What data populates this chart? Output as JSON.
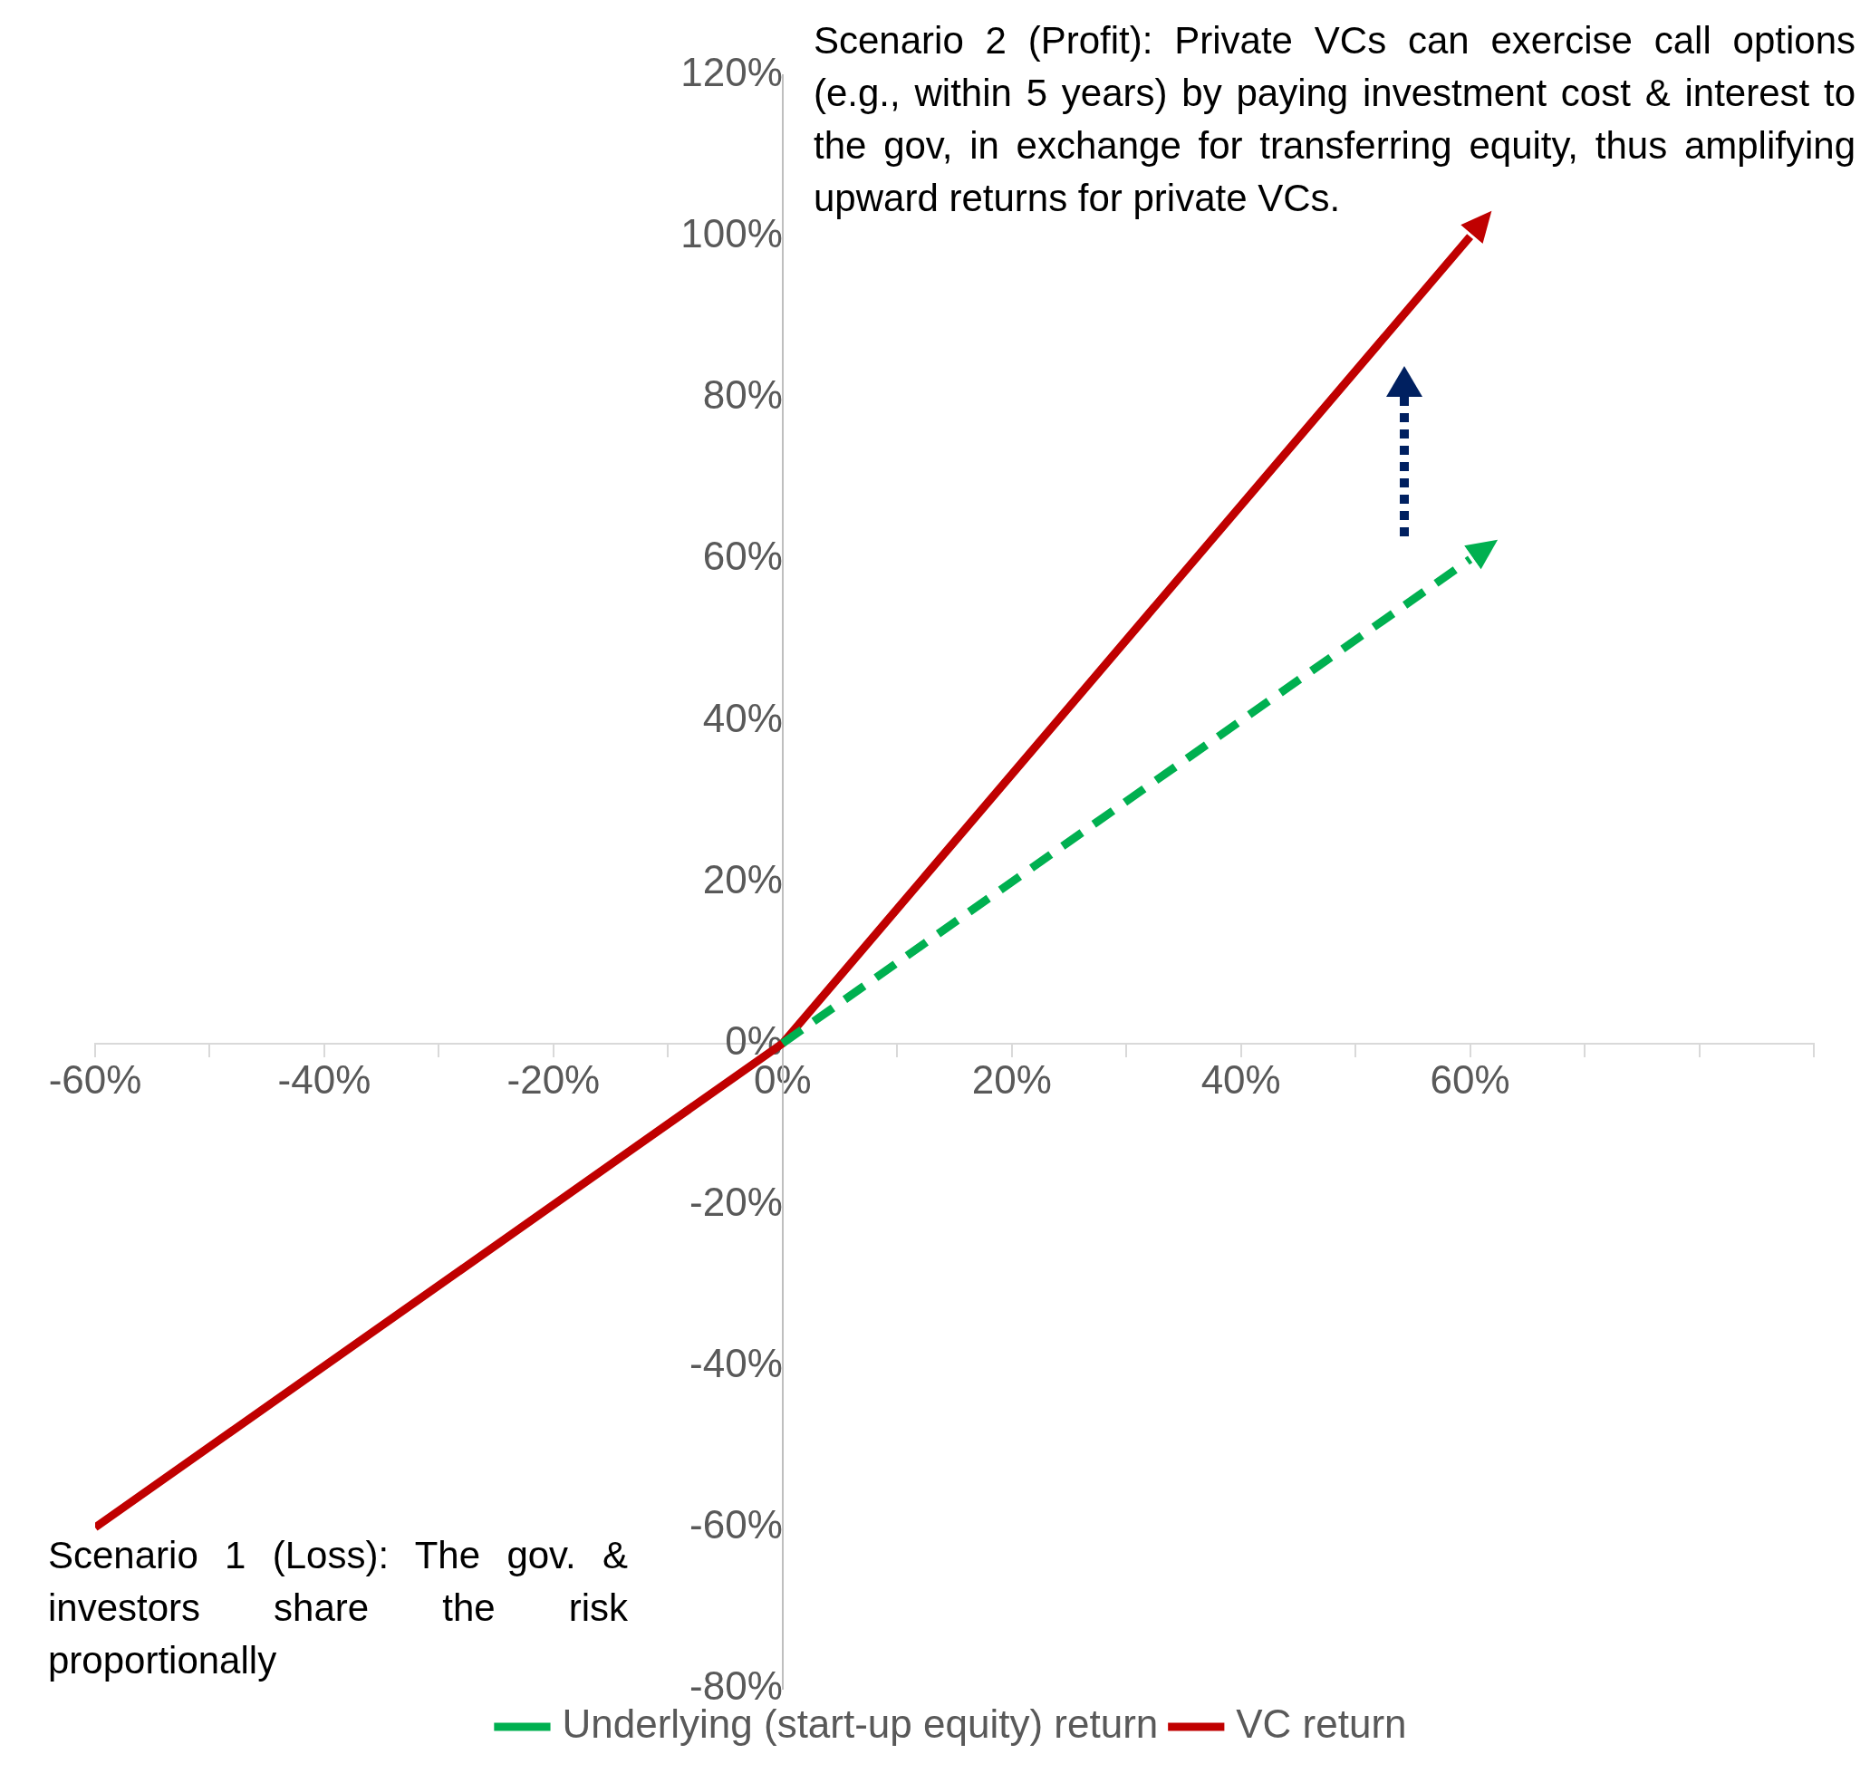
{
  "chart_data": {
    "type": "line",
    "xlim": [
      -60,
      90
    ],
    "xticks": [
      {
        "value": -60,
        "label": "-60%"
      },
      {
        "value": -50,
        "label": null
      },
      {
        "value": -40,
        "label": "-40%"
      },
      {
        "value": -30,
        "label": null
      },
      {
        "value": -20,
        "label": "-20%"
      },
      {
        "value": -10,
        "label": null
      },
      {
        "value": 0,
        "label": "0%"
      },
      {
        "value": 10,
        "label": null
      },
      {
        "value": 20,
        "label": "20%"
      },
      {
        "value": 30,
        "label": null
      },
      {
        "value": 40,
        "label": "40%"
      },
      {
        "value": 50,
        "label": null
      },
      {
        "value": 60,
        "label": "60%"
      },
      {
        "value": 70,
        "label": null
      },
      {
        "value": 80,
        "label": null
      },
      {
        "value": 90,
        "label": null
      }
    ],
    "ylim": [
      -80,
      120
    ],
    "yticks": [
      {
        "value": -80,
        "label": "-80%"
      },
      {
        "value": -60,
        "label": "-60%"
      },
      {
        "value": -40,
        "label": "-40%"
      },
      {
        "value": -20,
        "label": "-20%"
      },
      {
        "value": 0,
        "label": "0%"
      },
      {
        "value": 20,
        "label": "20%"
      },
      {
        "value": 40,
        "label": "40%"
      },
      {
        "value": 60,
        "label": "60%"
      },
      {
        "value": 80,
        "label": "80%"
      },
      {
        "value": 100,
        "label": "100%"
      },
      {
        "value": 120,
        "label": "120%"
      }
    ],
    "series": [
      {
        "name": "Underlying (start-up equity) return",
        "color": "#00b050",
        "line_style": "dashed",
        "x": [
          0,
          60
        ],
        "values": [
          0,
          60
        ]
      },
      {
        "name": "VC return",
        "color": "#c00000",
        "line_style": "solid",
        "x": [
          -60,
          0,
          60
        ],
        "values": [
          -60,
          0,
          100
        ]
      }
    ],
    "legend": "bottom",
    "grid": false,
    "marker": "none",
    "annotations": [
      "Scenario 2 (Profit): Private VCs can exercise call options (e.g., within 5 years) by paying investment cost & interest to the gov, in exchange for transferring equity, thus amplifying upward returns for private VCs.",
      "Scenario 1 (Loss): The gov. & investors share the risk proportionally"
    ]
  }
}
